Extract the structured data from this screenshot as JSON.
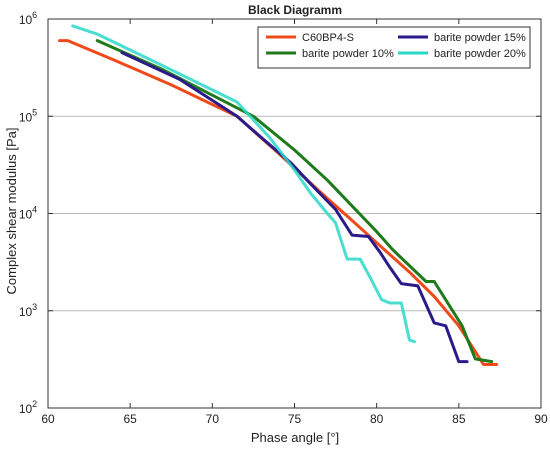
{
  "chart_data": {
    "type": "line",
    "title": "Black Diagramm",
    "xlabel": "Phase angle [°]",
    "ylabel": "Complex shear modulus [Pa]",
    "xlim": [
      60,
      90
    ],
    "ylim": [
      100,
      1000000
    ],
    "yscale": "log",
    "grid": "horizontal",
    "legend_position": "top-right",
    "x_ticks": [
      "60",
      "65",
      "70",
      "75",
      "80",
      "85",
      "90"
    ],
    "y_ticks": [
      {
        "value": 100,
        "base": "10",
        "exp": "2"
      },
      {
        "value": 1000,
        "base": "10",
        "exp": "3"
      },
      {
        "value": 10000,
        "base": "10",
        "exp": "4"
      },
      {
        "value": 100000,
        "base": "10",
        "exp": "5"
      },
      {
        "value": 1000000,
        "base": "10",
        "exp": "6"
      }
    ],
    "series": [
      {
        "name": "C60BP4-S",
        "color": "#f04a1a",
        "x": [
          60.7,
          61.2,
          64.0,
          67.5,
          71.5,
          74.0,
          76.5,
          78.5,
          80.0,
          82.0,
          83.5,
          85.0,
          86.5,
          87.3
        ],
        "y": [
          600000,
          600000,
          380000,
          210000,
          100000,
          42000,
          17000,
          8500,
          5000,
          2500,
          1400,
          700,
          280,
          280
        ]
      },
      {
        "name": "barite powder 10%",
        "color": "#1f7a1a",
        "x": [
          63.0,
          67.0,
          72.5,
          75.0,
          77.0,
          80.0,
          81.0,
          83.0,
          83.5,
          85.2,
          86.0,
          87.0
        ],
        "y": [
          600000,
          300000,
          100000,
          45000,
          22000,
          6500,
          4200,
          2000,
          2000,
          700,
          320,
          300
        ]
      },
      {
        "name": "barite powder 15%",
        "color": "#2a1a8a",
        "x": [
          64.5,
          68.0,
          71.5,
          73.0,
          74.8,
          76.0,
          77.5,
          78.5,
          79.5,
          80.2,
          80.8,
          81.5,
          82.5,
          83.5,
          84.2,
          85.0,
          85.5
        ],
        "y": [
          450000,
          240000,
          100000,
          60000,
          33000,
          20000,
          11000,
          6000,
          5800,
          4000,
          2800,
          1900,
          1800,
          750,
          700,
          300,
          300
        ]
      },
      {
        "name": "barite powder 20%",
        "color": "#2ad8c8",
        "x": [
          61.5,
          63.0,
          67.0,
          71.5,
          73.5,
          75.0,
          76.0,
          77.0,
          77.5,
          78.2,
          79.0,
          79.6,
          80.3,
          80.8,
          81.5,
          82.0,
          82.3
        ],
        "y": [
          850000,
          700000,
          330000,
          140000,
          60000,
          28000,
          16000,
          10000,
          8000,
          3400,
          3400,
          2200,
          1300,
          1200,
          1200,
          500,
          480
        ]
      }
    ]
  }
}
